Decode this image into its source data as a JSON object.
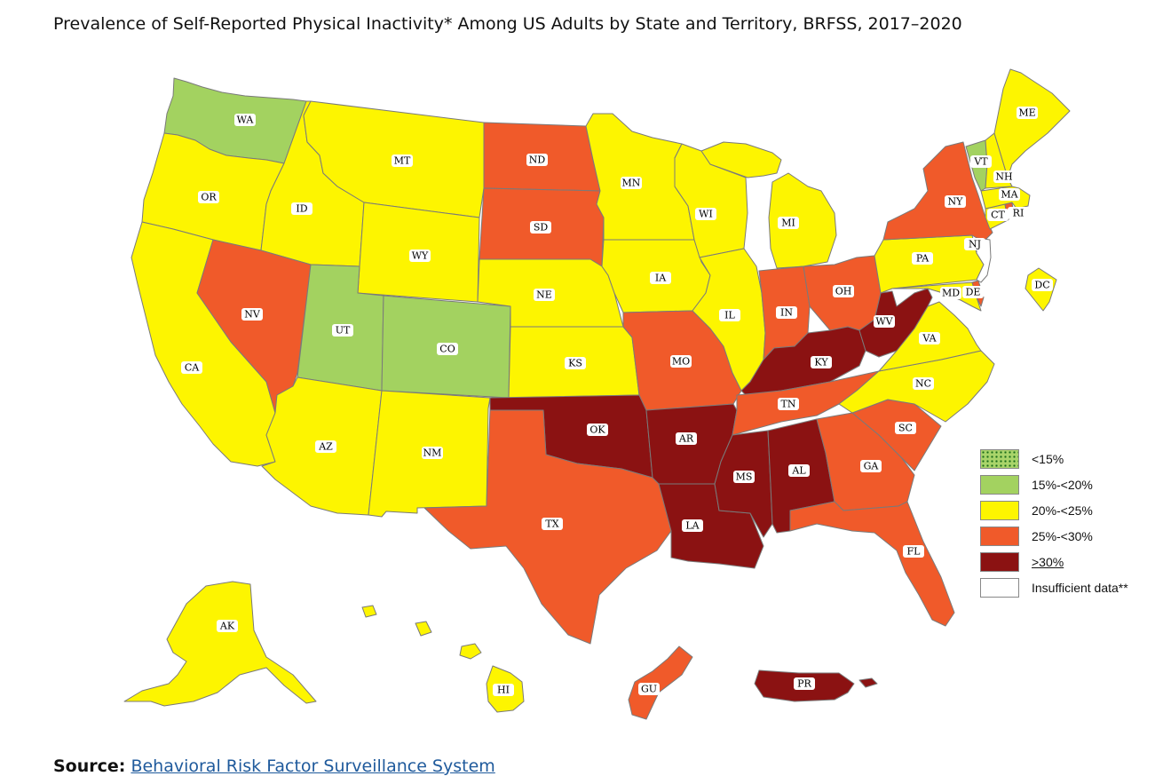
{
  "title": "Prevalence of Self-Reported Physical Inactivity* Among US Adults by State and Territory, BRFSS, 2017–2020",
  "source": {
    "label": "Source:",
    "link_text": "Behavioral Risk Factor Surveillance System"
  },
  "colors": {
    "lt15": "#a9d46a",
    "c15_20": "#a3d260",
    "c20_25": "#fdf500",
    "c25_30": "#f05a2a",
    "ge30": "#8b1212",
    "insufficient": "#ffffff"
  },
  "legend": [
    {
      "key": "lt15",
      "label": "<15%"
    },
    {
      "key": "c15_20",
      "label": "15%-<20%"
    },
    {
      "key": "c20_25",
      "label": "20%-<25%"
    },
    {
      "key": "c25_30",
      "label": "25%-<30%"
    },
    {
      "key": "ge30",
      "label": ">30%"
    },
    {
      "key": "insufficient",
      "label": "Insufficient data**"
    }
  ],
  "states": {
    "WA": "c15_20",
    "OR": "c20_25",
    "CA": "c20_25",
    "ID": "c20_25",
    "NV": "c25_30",
    "MT": "c20_25",
    "WY": "c20_25",
    "UT": "c15_20",
    "AZ": "c20_25",
    "CO": "c15_20",
    "NM": "c20_25",
    "ND": "c25_30",
    "SD": "c25_30",
    "NE": "c20_25",
    "KS": "c20_25",
    "OK": "ge30",
    "TX": "c25_30",
    "MN": "c20_25",
    "IA": "c20_25",
    "MO": "c25_30",
    "AR": "ge30",
    "LA": "ge30",
    "WI": "c20_25",
    "IL": "c20_25",
    "MI": "c20_25",
    "IN": "c25_30",
    "OH": "c25_30",
    "KY": "ge30",
    "TN": "c25_30",
    "MS": "ge30",
    "AL": "ge30",
    "GA": "c25_30",
    "FL": "c25_30",
    "SC": "c25_30",
    "NC": "c20_25",
    "VA": "c20_25",
    "WV": "ge30",
    "PA": "c20_25",
    "NY": "c25_30",
    "NJ": "insufficient",
    "DE": "c25_30",
    "MD": "c20_25",
    "DC": "c20_25",
    "CT": "c20_25",
    "RI": "c25_30",
    "MA": "c20_25",
    "VT": "c15_20",
    "NH": "c20_25",
    "ME": "c20_25",
    "AK": "c20_25",
    "HI": "c20_25",
    "GU": "c25_30",
    "PR": "ge30"
  }
}
